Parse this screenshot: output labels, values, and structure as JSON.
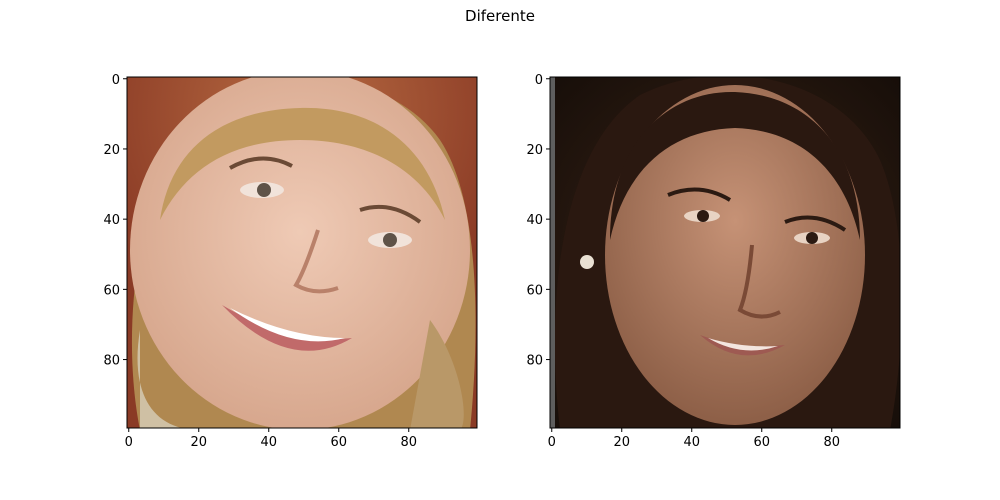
{
  "figure": {
    "suptitle": "Diferente"
  },
  "chart_data": [
    {
      "type": "image",
      "image_subject": "smiling face, light blonde hair, warm reddish-brown background",
      "xlim": [
        -0.5,
        99.5
      ],
      "ylim": [
        99.5,
        -0.5
      ],
      "xticks": [
        0,
        20,
        40,
        60,
        80
      ],
      "yticks": [
        0,
        20,
        40,
        60,
        80
      ],
      "grid": false,
      "colors": {
        "background": "#8a3a25",
        "hair": "#b08850",
        "skin": "#e3b9a2"
      }
    },
    {
      "type": "image",
      "image_subject": "smiling face, long dark brown hair, dark background",
      "xlim": [
        -0.5,
        99.5
      ],
      "ylim": [
        99.5,
        -0.5
      ],
      "xticks": [
        0,
        20,
        40,
        60,
        80
      ],
      "yticks": [
        0,
        20,
        40,
        60,
        80
      ],
      "grid": false,
      "colors": {
        "background": "#1c120d",
        "hair": "#2a1810",
        "skin": "#b27e63"
      }
    }
  ]
}
